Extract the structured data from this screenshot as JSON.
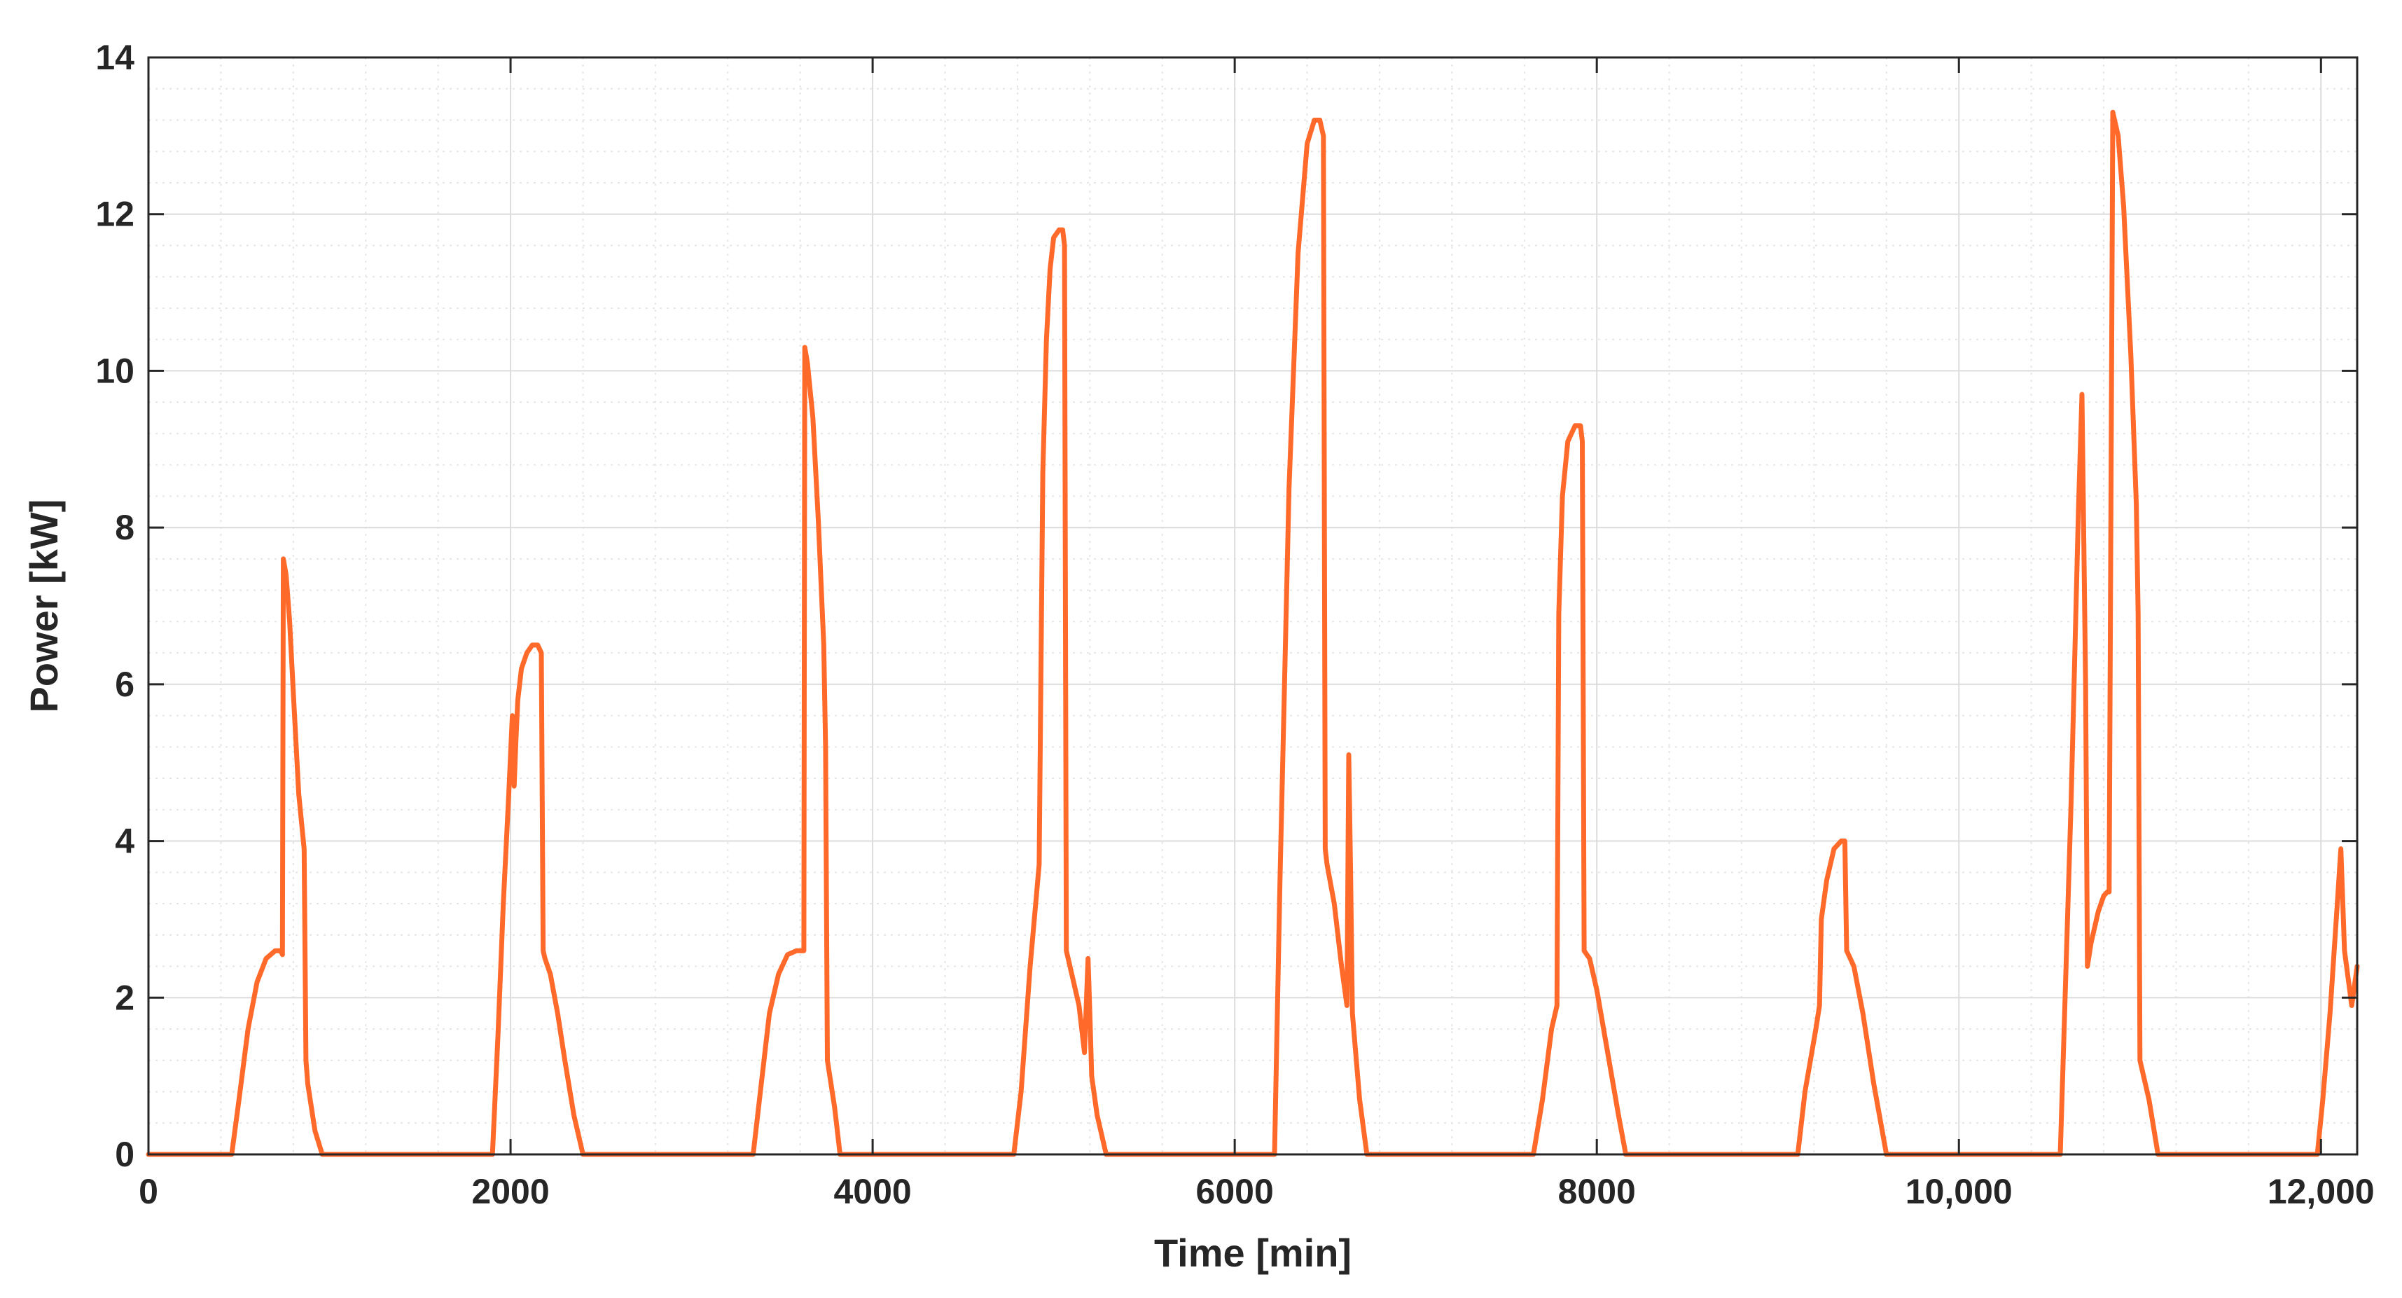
{
  "chart_data": {
    "type": "line",
    "title": "",
    "xlabel": "Time [min]",
    "ylabel": "Power [kW]",
    "xlim": [
      0,
      12200
    ],
    "ylim": [
      0,
      14
    ],
    "grid": true,
    "minor_grid": true,
    "x_ticks": [
      0,
      2000,
      4000,
      6000,
      8000,
      10000,
      12000
    ],
    "x_tick_labels": [
      "0",
      "2000",
      "4000",
      "6000",
      "8000",
      "10,000",
      "12,000"
    ],
    "y_ticks": [
      0,
      2,
      4,
      6,
      8,
      10,
      12,
      14
    ],
    "y_tick_labels": [
      "0",
      "2",
      "4",
      "6",
      "8",
      "10",
      "12",
      "14"
    ],
    "series": [
      {
        "name": "",
        "color": "#ff6a2b",
        "x": [
          0,
          460,
          500,
          550,
          600,
          650,
          700,
          730,
          740,
          745,
          760,
          780,
          800,
          830,
          860,
          870,
          880,
          920,
          960,
          1900,
          1930,
          1960,
          1990,
          2010,
          2020,
          2030,
          2040,
          2060,
          2090,
          2120,
          2150,
          2170,
          2180,
          2190,
          2220,
          2260,
          2300,
          2350,
          2400,
          3340,
          3380,
          3430,
          3480,
          3530,
          3580,
          3610,
          3620,
          3625,
          3640,
          3670,
          3700,
          3730,
          3740,
          3750,
          3790,
          3820,
          4780,
          4820,
          4870,
          4920,
          4940,
          4960,
          4980,
          5000,
          5030,
          5050,
          5060,
          5070,
          5100,
          5140,
          5170,
          5190,
          5200,
          5210,
          5240,
          5290,
          6220,
          6250,
          6300,
          6350,
          6400,
          6440,
          6470,
          6490,
          6500,
          6510,
          6550,
          6590,
          6620,
          6630,
          6640,
          6650,
          6690,
          6730,
          7650,
          7700,
          7750,
          7780,
          7790,
          7810,
          7840,
          7880,
          7910,
          7920,
          7930,
          7960,
          8000,
          8060,
          8120,
          8160,
          9110,
          9150,
          9210,
          9230,
          9240,
          9270,
          9310,
          9350,
          9370,
          9380,
          9420,
          9470,
          9530,
          9600,
          10560,
          10580,
          10620,
          10660,
          10680,
          10700,
          10710,
          10730,
          10770,
          10800,
          10820,
          10830,
          10850,
          10880,
          10910,
          10950,
          10980,
          10990,
          11000,
          11050,
          11100,
          11980,
          12010,
          12050,
          12090,
          12110,
          12130,
          12170,
          12200
        ],
        "y": [
          0,
          0,
          0.7,
          1.6,
          2.2,
          2.5,
          2.6,
          2.6,
          2.55,
          7.6,
          7.4,
          6.8,
          5.9,
          4.6,
          3.9,
          1.2,
          0.9,
          0.3,
          0,
          0,
          1.5,
          3.2,
          4.6,
          5.6,
          4.7,
          5.3,
          5.8,
          6.2,
          6.4,
          6.5,
          6.5,
          6.4,
          2.6,
          2.5,
          2.3,
          1.8,
          1.2,
          0.5,
          0,
          0,
          0.8,
          1.8,
          2.3,
          2.55,
          2.6,
          2.6,
          2.6,
          10.3,
          10.1,
          9.4,
          8.1,
          6.5,
          5.2,
          1.2,
          0.6,
          0,
          0,
          0.8,
          2.4,
          3.7,
          8.7,
          10.4,
          11.3,
          11.7,
          11.8,
          11.8,
          11.6,
          2.6,
          2.3,
          1.9,
          1.3,
          2.5,
          1.8,
          1.0,
          0.5,
          0,
          0,
          3.5,
          8.5,
          11.5,
          12.9,
          13.2,
          13.2,
          13.0,
          3.9,
          3.7,
          3.2,
          2.4,
          1.9,
          5.1,
          3.6,
          1.8,
          0.7,
          0,
          0,
          0.7,
          1.6,
          1.9,
          6.9,
          8.4,
          9.1,
          9.3,
          9.3,
          9.1,
          2.6,
          2.5,
          2.1,
          1.3,
          0.5,
          0,
          0,
          0.8,
          1.6,
          1.9,
          3.0,
          3.5,
          3.9,
          4.0,
          4.0,
          2.6,
          2.4,
          1.8,
          0.9,
          0,
          0,
          1.5,
          4.5,
          8.2,
          9.7,
          6.0,
          2.4,
          2.7,
          3.1,
          3.3,
          3.35,
          3.35,
          13.3,
          13.0,
          12.1,
          10.2,
          8.3,
          6.9,
          1.2,
          0.7,
          0,
          0,
          0.7,
          1.8,
          3.2,
          3.9,
          2.6,
          1.9,
          2.4
        ]
      }
    ]
  }
}
